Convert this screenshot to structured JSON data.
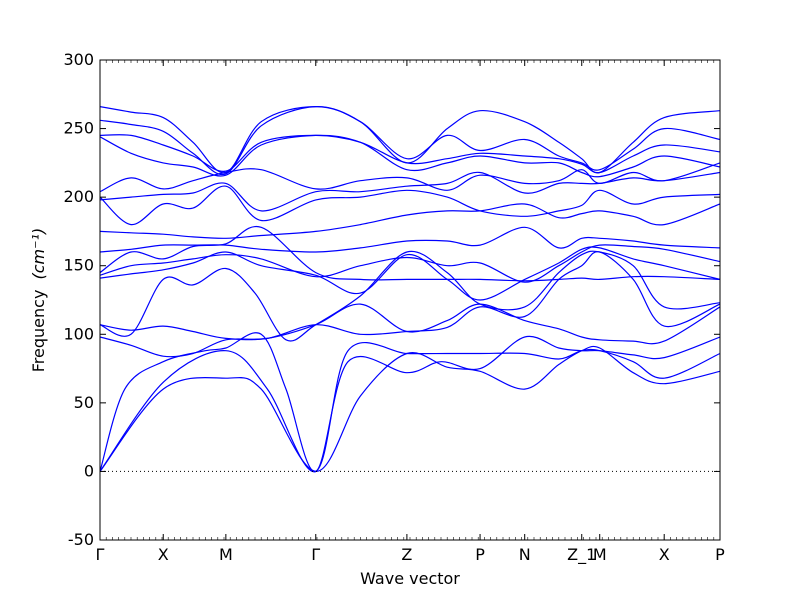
{
  "chart_data": {
    "type": "line",
    "xlabel": "Wave vector",
    "ylabel": "Frequency",
    "ylabel_unit": "(cm⁻¹)",
    "ylim": [
      -50,
      300
    ],
    "yticks": [
      -50,
      0,
      50,
      100,
      150,
      200,
      250,
      300
    ],
    "xlim": [
      0,
      1
    ],
    "xticks": [
      {
        "label": "Γ",
        "x": 0.0
      },
      {
        "label": "X",
        "x": 0.102
      },
      {
        "label": "M",
        "x": 0.203
      },
      {
        "label": "Γ",
        "x": 0.348
      },
      {
        "label": "Z",
        "x": 0.495
      },
      {
        "label": "P",
        "x": 0.613
      },
      {
        "label": "N",
        "x": 0.685
      },
      {
        "label": "Z_1",
        "x": 0.777
      },
      {
        "label": "M",
        "x": 0.806
      },
      {
        "label": "X",
        "x": 0.91
      },
      {
        "label": "P",
        "x": 1.0
      }
    ],
    "zero_line": {
      "y": 0,
      "style": "dotted"
    },
    "line_color": "#0000ff",
    "series": [
      {
        "x": [
          0,
          0.102,
          0.203,
          0.26,
          0.348,
          0.42,
          0.495,
          0.56,
          0.613,
          0.685,
          0.74,
          0.777,
          0.806,
          0.86,
          0.91,
          1.0
        ],
        "y": [
          0,
          60,
          68,
          60,
          0,
          55,
          86,
          76,
          73,
          60,
          78,
          88,
          90,
          72,
          64,
          73
        ]
      },
      {
        "x": [
          0,
          0.102,
          0.203,
          0.27,
          0.348,
          0.4,
          0.495,
          0.56,
          0.613,
          0.685,
          0.74,
          0.777,
          0.806,
          0.86,
          0.91,
          1.0
        ],
        "y": [
          0,
          65,
          88,
          60,
          0,
          88,
          86,
          86,
          86,
          86,
          82,
          88,
          88,
          80,
          68,
          86
        ]
      },
      {
        "x": [
          0,
          0.04,
          0.102,
          0.17,
          0.203,
          0.26,
          0.3,
          0.348,
          0.4,
          0.495,
          0.55,
          0.613,
          0.685,
          0.74,
          0.777,
          0.806,
          0.86,
          0.91,
          1.0
        ],
        "y": [
          0,
          60,
          80,
          88,
          90,
          100,
          60,
          0,
          80,
          72,
          80,
          75,
          98,
          90,
          88,
          88,
          85,
          83,
          98
        ]
      },
      {
        "x": [
          0,
          0.05,
          0.102,
          0.15,
          0.203,
          0.27,
          0.348,
          0.42,
          0.495,
          0.56,
          0.613,
          0.685,
          0.74,
          0.777,
          0.806,
          0.86,
          0.91,
          1.0
        ],
        "y": [
          98,
          92,
          84,
          86,
          96,
          97,
          107,
          122,
          102,
          110,
          122,
          110,
          104,
          98,
          96,
          95,
          95,
          120
        ]
      },
      {
        "x": [
          0,
          0.05,
          0.102,
          0.15,
          0.203,
          0.27,
          0.348,
          0.42,
          0.495,
          0.56,
          0.613,
          0.685,
          0.74,
          0.777,
          0.806,
          0.86,
          0.91,
          1.0
        ],
        "y": [
          107,
          103,
          106,
          102,
          97,
          97,
          107,
          100,
          102,
          105,
          120,
          113,
          140,
          150,
          160,
          140,
          106,
          122
        ]
      },
      {
        "x": [
          0,
          0.05,
          0.102,
          0.15,
          0.203,
          0.25,
          0.3,
          0.348,
          0.42,
          0.495,
          0.56,
          0.613,
          0.685,
          0.74,
          0.777,
          0.806,
          0.86,
          0.91,
          1.0
        ],
        "y": [
          107,
          100,
          140,
          136,
          148,
          130,
          96,
          107,
          128,
          160,
          145,
          122,
          120,
          145,
          158,
          160,
          150,
          120,
          123
        ]
      },
      {
        "x": [
          0,
          0.05,
          0.102,
          0.15,
          0.203,
          0.26,
          0.348,
          0.42,
          0.495,
          0.56,
          0.613,
          0.685,
          0.74,
          0.777,
          0.806,
          0.86,
          0.91,
          1.0
        ],
        "y": [
          141,
          144,
          147,
          152,
          160,
          150,
          143,
          130,
          158,
          140,
          125,
          140,
          152,
          162,
          163,
          155,
          150,
          140
        ]
      },
      {
        "x": [
          0,
          0.05,
          0.102,
          0.15,
          0.203,
          0.26,
          0.348,
          0.42,
          0.495,
          0.56,
          0.613,
          0.685,
          0.74,
          0.777,
          0.806,
          0.86,
          0.91,
          1.0
        ],
        "y": [
          143,
          150,
          152,
          155,
          158,
          155,
          142,
          150,
          156,
          150,
          152,
          138,
          150,
          160,
          165,
          164,
          162,
          153
        ]
      },
      {
        "x": [
          0,
          0.05,
          0.102,
          0.15,
          0.203,
          0.26,
          0.348,
          0.42,
          0.495,
          0.56,
          0.613,
          0.685,
          0.74,
          0.777,
          0.806,
          0.86,
          0.91,
          1.0
        ],
        "y": [
          145,
          160,
          155,
          164,
          166,
          178,
          145,
          140,
          140,
          140,
          140,
          139,
          140,
          141,
          140,
          142,
          142,
          140
        ]
      },
      {
        "x": [
          0,
          0.05,
          0.102,
          0.15,
          0.203,
          0.26,
          0.348,
          0.42,
          0.495,
          0.56,
          0.613,
          0.685,
          0.74,
          0.777,
          0.806,
          0.86,
          0.91,
          1.0
        ],
        "y": [
          160,
          162,
          165,
          165,
          165,
          162,
          160,
          163,
          168,
          168,
          165,
          178,
          163,
          170,
          170,
          168,
          165,
          163
        ]
      },
      {
        "x": [
          0,
          0.05,
          0.102,
          0.15,
          0.203,
          0.26,
          0.348,
          0.42,
          0.495,
          0.56,
          0.613,
          0.685,
          0.74,
          0.777,
          0.806,
          0.86,
          0.91,
          1.0
        ],
        "y": [
          175,
          174,
          173,
          171,
          170,
          172,
          175,
          180,
          187,
          190,
          190,
          195,
          185,
          188,
          190,
          186,
          180,
          195
        ]
      },
      {
        "x": [
          0,
          0.05,
          0.102,
          0.15,
          0.203,
          0.26,
          0.348,
          0.42,
          0.495,
          0.56,
          0.613,
          0.685,
          0.74,
          0.777,
          0.806,
          0.86,
          0.91,
          1.0
        ],
        "y": [
          200,
          180,
          195,
          192,
          208,
          183,
          198,
          200,
          205,
          200,
          190,
          186,
          190,
          194,
          205,
          195,
          200,
          202
        ]
      },
      {
        "x": [
          0,
          0.05,
          0.102,
          0.15,
          0.203,
          0.26,
          0.348,
          0.42,
          0.495,
          0.56,
          0.613,
          0.685,
          0.74,
          0.777,
          0.806,
          0.86,
          0.91,
          1.0
        ],
        "y": [
          198,
          200,
          202,
          203,
          210,
          190,
          204,
          204,
          208,
          210,
          218,
          203,
          210,
          210,
          210,
          214,
          212,
          218
        ]
      },
      {
        "x": [
          0,
          0.05,
          0.102,
          0.15,
          0.203,
          0.26,
          0.348,
          0.42,
          0.495,
          0.56,
          0.613,
          0.685,
          0.74,
          0.777,
          0.806,
          0.86,
          0.91,
          1.0
        ],
        "y": [
          204,
          214,
          206,
          212,
          218,
          220,
          206,
          212,
          214,
          205,
          216,
          210,
          212,
          220,
          210,
          218,
          212,
          225
        ]
      },
      {
        "x": [
          0,
          0.05,
          0.102,
          0.15,
          0.203,
          0.26,
          0.348,
          0.42,
          0.495,
          0.56,
          0.613,
          0.685,
          0.74,
          0.777,
          0.806,
          0.86,
          0.91,
          1.0
        ],
        "y": [
          244,
          232,
          225,
          222,
          216,
          238,
          245,
          240,
          220,
          225,
          230,
          225,
          225,
          218,
          215,
          222,
          230,
          222
        ]
      },
      {
        "x": [
          0,
          0.05,
          0.102,
          0.15,
          0.203,
          0.26,
          0.348,
          0.42,
          0.495,
          0.56,
          0.613,
          0.685,
          0.74,
          0.777,
          0.806,
          0.86,
          0.91,
          1.0
        ],
        "y": [
          245,
          245,
          238,
          230,
          219,
          240,
          245,
          240,
          225,
          228,
          232,
          230,
          228,
          224,
          218,
          230,
          238,
          233
        ]
      },
      {
        "x": [
          0,
          0.05,
          0.102,
          0.15,
          0.203,
          0.26,
          0.348,
          0.42,
          0.495,
          0.56,
          0.613,
          0.685,
          0.74,
          0.777,
          0.806,
          0.86,
          0.91,
          1.0
        ],
        "y": [
          256,
          253,
          248,
          232,
          217,
          252,
          266,
          255,
          228,
          245,
          234,
          242,
          230,
          225,
          220,
          235,
          250,
          242
        ]
      },
      {
        "x": [
          0,
          0.05,
          0.102,
          0.15,
          0.203,
          0.26,
          0.348,
          0.42,
          0.495,
          0.56,
          0.613,
          0.685,
          0.74,
          0.777,
          0.806,
          0.86,
          0.91,
          1.0
        ],
        "y": [
          266,
          262,
          258,
          240,
          218,
          255,
          266,
          255,
          225,
          250,
          263,
          255,
          240,
          228,
          218,
          240,
          258,
          263
        ]
      }
    ]
  }
}
